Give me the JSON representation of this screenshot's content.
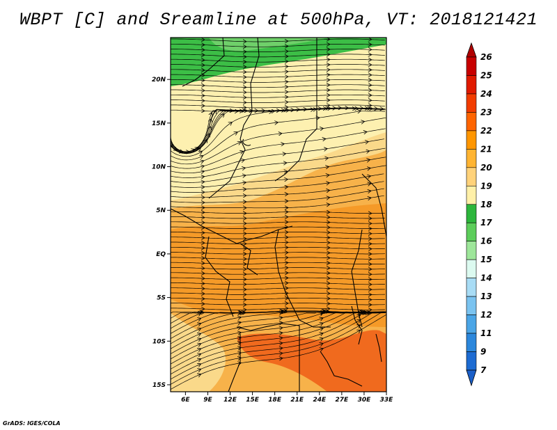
{
  "title": "WBPT [C] and Sreamline at 500hPa, VT: 2018121421",
  "credit": "GrADS: IGES/COLA",
  "axes": {
    "lat_ticks": [
      "20N",
      "15N",
      "10N",
      "5N",
      "EQ",
      "5S",
      "10S",
      "15S"
    ],
    "lon_ticks": [
      "6E",
      "9E",
      "12E",
      "15E",
      "18E",
      "21E",
      "24E",
      "27E",
      "30E",
      "33E"
    ],
    "lat_values": [
      20,
      15,
      10,
      5,
      0,
      -5,
      -10,
      -15
    ],
    "lon_values": [
      6,
      9,
      12,
      15,
      18,
      21,
      24,
      27,
      30,
      33
    ]
  },
  "colorbar": {
    "labels": [
      "26",
      "25",
      "24",
      "23",
      "22",
      "21",
      "20",
      "19",
      "18",
      "17",
      "16",
      "15",
      "14",
      "13",
      "12",
      "11",
      "9",
      "7"
    ],
    "colors": [
      "#c80000",
      "#e01a00",
      "#f23c00",
      "#ff6400",
      "#ff9600",
      "#ffb432",
      "#ffd27a",
      "#fff0a8",
      "#2db63c",
      "#5ccd5a",
      "#9ee69a",
      "#dcfaf0",
      "#a8dcf5",
      "#7ac3f0",
      "#4aa5e6",
      "#2b87dc",
      "#1d6bd2"
    ],
    "arrow_top_color": "#b00000",
    "arrow_bottom_color": "#1a5fc8"
  },
  "map": {
    "bands": [
      {
        "name": "green-17",
        "color": "#3cbe46"
      },
      {
        "name": "light-19",
        "color": "#fdf0b0"
      },
      {
        "name": "band-20",
        "color": "#fad98a"
      },
      {
        "name": "band-21",
        "color": "#f7b24a"
      },
      {
        "name": "band-22",
        "color": "#f59a28"
      },
      {
        "name": "band-23",
        "color": "#f06a1e"
      }
    ]
  }
}
